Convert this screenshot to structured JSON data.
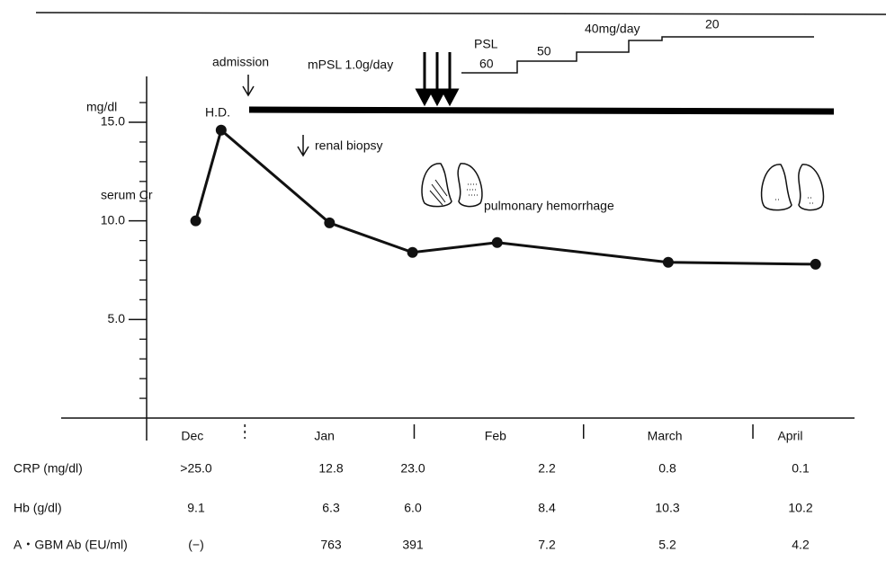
{
  "chart_data": {
    "type": "line",
    "y_unit": "mg/dl",
    "ylabel": "serum Cr",
    "x": [
      0.71,
      0.86,
      1.5,
      1.99,
      2.49,
      3.5,
      4.37
    ],
    "series": [
      {
        "name": "serum Cr",
        "color": "#111111",
        "values": [
          10.0,
          14.6,
          9.9,
          8.4,
          8.9,
          7.9,
          7.8
        ]
      }
    ],
    "xlim": [
      0.42,
      4.6
    ],
    "ylim": [
      0,
      17.6
    ],
    "yticks": [
      {
        "value": 5,
        "label": "5.0"
      },
      {
        "value": 10,
        "label": "10.0"
      },
      {
        "value": 15,
        "label": "15.0"
      }
    ],
    "minor_yticks": [
      1,
      2,
      3,
      4,
      6,
      7,
      8,
      9,
      11,
      12,
      13,
      14,
      16
    ],
    "xticks": [
      1,
      2,
      3,
      4
    ],
    "months": [
      "Dec",
      "Jan",
      "Feb",
      "March",
      "April"
    ],
    "month_label_x": [
      0.69,
      1.47,
      2.48,
      3.48,
      4.22
    ],
    "annotations": {
      "admission": "admission",
      "hd": "H.D.",
      "biopsy": "renal biopsy",
      "mpsl": "mPSL 1.0g/day",
      "psl": "PSL",
      "psl60": "60",
      "psl50": "50",
      "psl40": "40mg/day",
      "psl20": "20",
      "pulmonary": "pulmonary hemorrhage"
    }
  },
  "table": {
    "rows": [
      [
        "CRP (mg/dl)",
        ">25.0",
        "12.8",
        "23.0",
        "2.2",
        "0.8",
        "0.1"
      ],
      [
        "Hb (g/dl)",
        "9.1",
        "6.3",
        "6.0",
        "8.4",
        "10.3",
        "10.2"
      ],
      [
        "A・GBM Ab (EU/ml)",
        "(−)",
        "763",
        "391",
        "7.2",
        "5.2",
        "4.2"
      ]
    ]
  }
}
